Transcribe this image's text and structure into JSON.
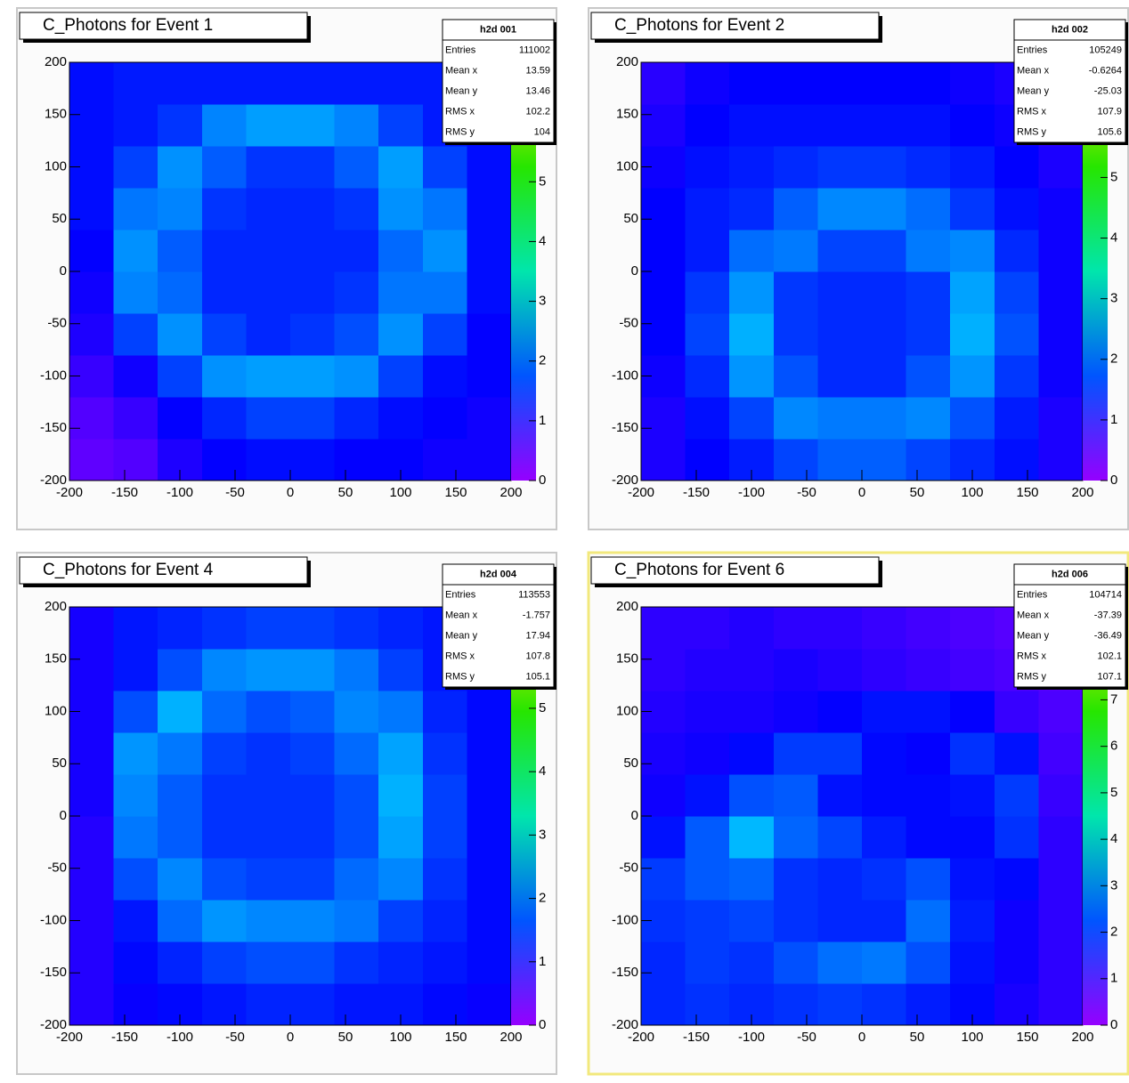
{
  "chart_data": [
    {
      "type": "heatmap",
      "title": "C_Photons for Event 1",
      "stats": {
        "name": "h2d 001",
        "rows": [
          {
            "label": "Entries",
            "value": "111002"
          },
          {
            "label": "Mean x",
            "value": "13.59"
          },
          {
            "label": "Mean y",
            "value": "13.46"
          },
          {
            "label": "RMS x",
            "value": "102.2"
          },
          {
            "label": "RMS y",
            "value": "104"
          }
        ]
      },
      "xlim": [
        -200,
        200
      ],
      "xticks": [
        -200,
        -150,
        -100,
        -50,
        0,
        50,
        100,
        150,
        200
      ],
      "ylim": [
        -200,
        200
      ],
      "yticks": [
        -200,
        -150,
        -100,
        -50,
        0,
        50,
        100,
        150,
        200
      ],
      "zlim": [
        0,
        7
      ],
      "zticks": [
        0,
        1,
        2,
        3,
        4,
        5
      ],
      "xbins": [
        -200,
        -160,
        -120,
        -80,
        -40,
        0,
        40,
        80,
        120,
        160,
        200
      ],
      "ybins": [
        -200,
        -160,
        -120,
        -80,
        -40,
        0,
        40,
        80,
        120,
        160,
        200
      ],
      "z": [
        [
          0.4,
          0.5,
          0.9,
          1.1,
          1.2,
          1.2,
          1.1,
          1.1,
          1.0,
          1.0
        ],
        [
          0.5,
          0.7,
          1.1,
          1.4,
          1.6,
          1.6,
          1.4,
          1.2,
          1.1,
          1.0
        ],
        [
          0.7,
          1.0,
          1.6,
          2.2,
          2.3,
          2.3,
          2.2,
          1.6,
          1.2,
          1.1
        ],
        [
          0.9,
          1.6,
          2.2,
          1.6,
          1.4,
          1.5,
          1.7,
          2.2,
          1.6,
          1.1
        ],
        [
          1.0,
          2.1,
          1.9,
          1.4,
          1.4,
          1.4,
          1.5,
          2.0,
          2.0,
          1.2
        ],
        [
          1.1,
          2.2,
          1.8,
          1.4,
          1.4,
          1.4,
          1.4,
          1.9,
          2.2,
          1.2
        ],
        [
          1.2,
          2.0,
          2.1,
          1.5,
          1.4,
          1.4,
          1.5,
          2.2,
          2.0,
          1.2
        ],
        [
          1.2,
          1.6,
          2.2,
          1.8,
          1.5,
          1.5,
          1.8,
          2.3,
          1.6,
          1.2
        ],
        [
          1.2,
          1.3,
          1.5,
          2.1,
          2.3,
          2.3,
          2.1,
          1.6,
          1.3,
          1.2
        ],
        [
          1.2,
          1.3,
          1.3,
          1.3,
          1.3,
          1.3,
          1.3,
          1.3,
          1.3,
          1.2
        ]
      ]
    },
    {
      "type": "heatmap",
      "title": "C_Photons for Event 2",
      "stats": {
        "name": "h2d 002",
        "rows": [
          {
            "label": "Entries",
            "value": "105249"
          },
          {
            "label": "Mean x",
            "value": "-0.6264"
          },
          {
            "label": "Mean y",
            "value": "-25.03"
          },
          {
            "label": "RMS x",
            "value": "107.9"
          },
          {
            "label": "RMS y",
            "value": "105.6"
          }
        ]
      },
      "xlim": [
        -200,
        200
      ],
      "xticks": [
        -200,
        -150,
        -100,
        -50,
        0,
        50,
        100,
        150,
        200
      ],
      "ylim": [
        -200,
        200
      ],
      "yticks": [
        -200,
        -150,
        -100,
        -50,
        0,
        50,
        100,
        150,
        200
      ],
      "zlim": [
        0,
        6.9
      ],
      "zticks": [
        0,
        1,
        2,
        3,
        4,
        5
      ],
      "xbins": [
        -200,
        -160,
        -120,
        -80,
        -40,
        0,
        40,
        80,
        120,
        160,
        200
      ],
      "ybins": [
        -200,
        -160,
        -120,
        -80,
        -40,
        0,
        40,
        80,
        120,
        160,
        200
      ],
      "z": [
        [
          0.9,
          1.1,
          1.3,
          1.6,
          1.8,
          1.8,
          1.6,
          1.4,
          1.2,
          0.9
        ],
        [
          0.9,
          1.2,
          1.6,
          2.1,
          2.0,
          2.0,
          2.1,
          1.7,
          1.3,
          0.9
        ],
        [
          1.0,
          1.4,
          2.2,
          1.7,
          1.4,
          1.4,
          1.7,
          2.2,
          1.5,
          1.0
        ],
        [
          1.1,
          1.6,
          2.4,
          1.5,
          1.4,
          1.4,
          1.5,
          2.4,
          1.7,
          1.0
        ],
        [
          1.1,
          1.5,
          2.2,
          1.5,
          1.4,
          1.4,
          1.5,
          2.3,
          1.6,
          1.0
        ],
        [
          1.1,
          1.3,
          1.9,
          2.0,
          1.6,
          1.6,
          2.0,
          2.1,
          1.4,
          1.0
        ],
        [
          1.1,
          1.3,
          1.4,
          1.8,
          2.1,
          2.1,
          1.9,
          1.5,
          1.2,
          1.0
        ],
        [
          1.0,
          1.2,
          1.3,
          1.4,
          1.5,
          1.5,
          1.4,
          1.3,
          1.1,
          0.9
        ],
        [
          0.9,
          1.1,
          1.2,
          1.2,
          1.2,
          1.2,
          1.2,
          1.1,
          1.0,
          0.8
        ],
        [
          0.8,
          1.0,
          1.1,
          1.1,
          1.1,
          1.1,
          1.1,
          1.0,
          0.9,
          0.8
        ]
      ]
    },
    {
      "type": "heatmap",
      "title": "C_Photons for Event 4",
      "stats": {
        "name": "h2d 004",
        "rows": [
          {
            "label": "Entries",
            "value": "113553"
          },
          {
            "label": "Mean x",
            "value": "-1.757"
          },
          {
            "label": "Mean y",
            "value": "17.94"
          },
          {
            "label": "RMS x",
            "value": "107.8"
          },
          {
            "label": "RMS y",
            "value": "105.1"
          }
        ]
      },
      "xlim": [
        -200,
        200
      ],
      "xticks": [
        -200,
        -150,
        -100,
        -50,
        0,
        50,
        100,
        150,
        200
      ],
      "ylim": [
        -200,
        200
      ],
      "yticks": [
        -200,
        -150,
        -100,
        -50,
        0,
        50,
        100,
        150,
        200
      ],
      "zlim": [
        0,
        6.6
      ],
      "zticks": [
        0,
        1,
        2,
        3,
        4,
        5
      ],
      "xbins": [
        -200,
        -160,
        -120,
        -80,
        -40,
        0,
        40,
        80,
        120,
        160,
        200
      ],
      "ybins": [
        -200,
        -160,
        -120,
        -80,
        -40,
        0,
        40,
        80,
        120,
        160,
        200
      ],
      "z": [
        [
          0.8,
          1.0,
          1.1,
          1.2,
          1.3,
          1.3,
          1.2,
          1.2,
          1.1,
          1.0
        ],
        [
          0.8,
          1.1,
          1.3,
          1.5,
          1.6,
          1.6,
          1.4,
          1.3,
          1.2,
          1.1
        ],
        [
          0.8,
          1.2,
          1.8,
          2.1,
          2.0,
          2.0,
          1.9,
          1.5,
          1.3,
          1.1
        ],
        [
          0.8,
          1.6,
          2.0,
          1.6,
          1.5,
          1.5,
          1.8,
          2.0,
          1.4,
          1.1
        ],
        [
          0.8,
          1.9,
          1.7,
          1.4,
          1.4,
          1.4,
          1.6,
          2.2,
          1.5,
          1.1
        ],
        [
          0.9,
          2.0,
          1.7,
          1.4,
          1.4,
          1.4,
          1.6,
          2.3,
          1.5,
          1.1
        ],
        [
          0.9,
          2.1,
          1.9,
          1.5,
          1.4,
          1.5,
          1.8,
          2.2,
          1.4,
          1.1
        ],
        [
          0.9,
          1.6,
          2.3,
          1.8,
          1.6,
          1.7,
          2.0,
          1.9,
          1.3,
          1.1
        ],
        [
          0.9,
          1.2,
          1.6,
          2.0,
          2.1,
          2.1,
          1.9,
          1.5,
          1.2,
          1.1
        ],
        [
          0.9,
          1.2,
          1.3,
          1.4,
          1.5,
          1.5,
          1.4,
          1.3,
          1.2,
          1.1
        ]
      ]
    },
    {
      "type": "heatmap",
      "title": "C_Photons for Event 6",
      "stats": {
        "name": "h2d 006",
        "rows": [
          {
            "label": "Entries",
            "value": "104714"
          },
          {
            "label": "Mean x",
            "value": "-37.39"
          },
          {
            "label": "Mean y",
            "value": "-36.49"
          },
          {
            "label": "RMS x",
            "value": "102.1"
          },
          {
            "label": "RMS y",
            "value": "107.1"
          }
        ]
      },
      "xlim": [
        -200,
        200
      ],
      "xticks": [
        -200,
        -150,
        -100,
        -50,
        0,
        50,
        100,
        150,
        200
      ],
      "ylim": [
        -200,
        200
      ],
      "yticks": [
        -200,
        -150,
        -100,
        -50,
        0,
        50,
        100,
        150,
        200
      ],
      "zlim": [
        0,
        9
      ],
      "zticks": [
        0,
        1,
        2,
        3,
        4,
        5,
        6,
        7
      ],
      "xbins": [
        -200,
        -160,
        -120,
        -80,
        -40,
        0,
        40,
        80,
        120,
        160,
        200
      ],
      "ybins": [
        -200,
        -160,
        -120,
        -80,
        -40,
        0,
        40,
        80,
        120,
        160,
        200
      ],
      "z": [
        [
          1.8,
          1.9,
          1.8,
          1.9,
          2.0,
          1.9,
          1.7,
          1.5,
          1.2,
          1.0
        ],
        [
          1.8,
          2.0,
          1.9,
          2.2,
          2.5,
          2.6,
          2.2,
          1.6,
          1.3,
          1.0
        ],
        [
          1.9,
          2.0,
          2.1,
          1.9,
          1.8,
          1.8,
          2.5,
          1.7,
          1.3,
          1.0
        ],
        [
          2.0,
          2.3,
          2.4,
          1.9,
          1.8,
          1.9,
          2.2,
          1.6,
          1.5,
          1.0
        ],
        [
          1.6,
          2.3,
          3.2,
          2.4,
          2.1,
          1.7,
          1.5,
          1.5,
          1.9,
          1.0
        ],
        [
          1.3,
          1.6,
          2.2,
          2.3,
          1.6,
          1.5,
          1.5,
          1.6,
          2.0,
          0.9
        ],
        [
          1.2,
          1.3,
          1.5,
          2.0,
          2.0,
          1.5,
          1.4,
          1.9,
          1.6,
          0.8
        ],
        [
          1.1,
          1.2,
          1.2,
          1.3,
          1.4,
          1.6,
          1.6,
          1.4,
          0.9,
          0.7
        ],
        [
          1.0,
          1.1,
          1.1,
          1.2,
          1.1,
          1.0,
          0.9,
          0.8,
          0.7,
          0.6
        ],
        [
          1.0,
          1.0,
          1.1,
          1.0,
          1.0,
          0.9,
          0.8,
          0.7,
          0.6,
          0.6
        ]
      ]
    }
  ]
}
